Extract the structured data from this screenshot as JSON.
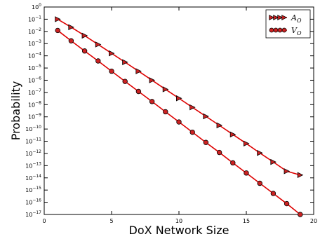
{
  "chart_data": {
    "type": "line",
    "xlabel": "DoX Network Size",
    "ylabel": "Probability",
    "xlim": [
      0,
      20
    ],
    "ylim_exponent": [
      -17,
      0
    ],
    "yscale": "log",
    "grid": false,
    "legend_position": "top-right",
    "x_ticks": [
      "0",
      "5",
      "10",
      "15",
      "20"
    ],
    "y_tick_exponents": [
      0,
      -1,
      -2,
      -3,
      -4,
      -5,
      -6,
      -7,
      -8,
      -9,
      -10,
      -11,
      -12,
      -13,
      -14,
      -15,
      -16,
      -17
    ],
    "x": [
      1,
      2,
      3,
      4,
      5,
      6,
      7,
      8,
      9,
      10,
      11,
      12,
      13,
      14,
      15,
      16,
      17,
      18,
      19
    ],
    "series": [
      {
        "name": "A",
        "name_subscript": "O",
        "marker": "triangle-right",
        "line_color": "#dd0000",
        "marker_color": "#cc2222",
        "values": [
          0.1,
          0.022,
          0.0045,
          0.00085,
          0.00016,
          3e-05,
          5.5e-06,
          1e-06,
          1.8e-07,
          3.3e-08,
          6e-09,
          1.1e-09,
          2e-10,
          3.6e-11,
          6.5e-12,
          1.1e-12,
          2e-13,
          3.5e-14,
          1.7e-14
        ]
      },
      {
        "name": "V",
        "name_subscript": "O",
        "marker": "circle",
        "line_color": "#dd0000",
        "marker_color": "#cc2222",
        "values": [
          0.012,
          0.0017,
          0.00025,
          3.8e-05,
          5.5e-06,
          8e-07,
          1.2e-07,
          1.8e-08,
          2.6e-09,
          3.8e-10,
          5.5e-11,
          8e-12,
          1.2e-12,
          1.7e-13,
          2.5e-14,
          3.6e-15,
          5.3e-16,
          7.7e-17,
          1e-17
        ]
      }
    ]
  }
}
